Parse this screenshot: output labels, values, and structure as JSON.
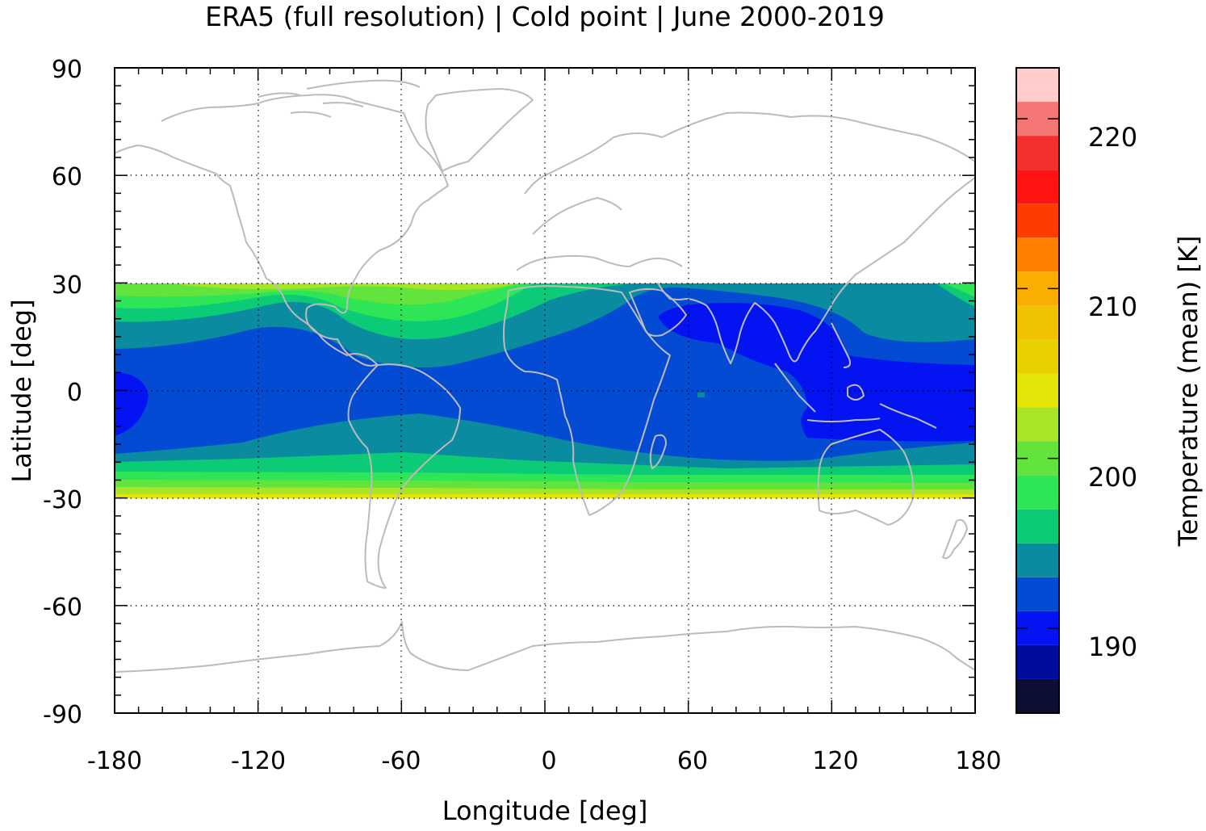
{
  "title": "ERA5 (full resolution) | Cold point | June 2000-2019",
  "chart_data": {
    "type": "heatmap",
    "title": "ERA5 (full resolution) | Cold point | June 2000-2019",
    "xlabel": "Longitude [deg]",
    "ylabel": "Latitude [deg]",
    "xlim": [
      -180,
      180
    ],
    "ylim": [
      -90,
      90
    ],
    "x_ticks": [
      "-180",
      "-120",
      "-60",
      "0",
      "60",
      "120",
      "180"
    ],
    "y_ticks": [
      "90",
      "60",
      "30",
      "0",
      "-30",
      "-60",
      "-90"
    ],
    "grid": true,
    "data_extent_lat": [
      -30,
      30
    ],
    "colorbar": {
      "label": "Temperature (mean) [K]",
      "range": [
        185,
        223
      ],
      "ticks": [
        "190",
        "200",
        "210",
        "220"
      ],
      "levels": [
        185,
        187,
        189,
        191,
        193,
        195,
        197,
        199,
        201,
        203,
        205,
        207,
        209,
        211,
        213,
        215,
        217,
        219,
        221,
        223
      ],
      "colors": [
        "#0c0f33",
        "#000d9c",
        "#0413f2",
        "#034bd2",
        "#0b8b9f",
        "#0ccb76",
        "#2ee457",
        "#63e43c",
        "#a7e526",
        "#e5e407",
        "#e9d100",
        "#f0c200",
        "#f9ae00",
        "#ff7f00",
        "#ff3c00",
        "#ff1313",
        "#f23030",
        "#f47674",
        "#ffcbcb"
      ]
    },
    "bands": [
      {
        "temperature_K": 190,
        "approx_region": "Western Pacific / Maritime Continent and Bay of Bengal / South Asian monsoon"
      },
      {
        "temperature_K": 192,
        "approx_region": "tropical belt ~15S to ~15N"
      },
      {
        "temperature_K": 194,
        "approx_region": "~15 to 20 deg N and S"
      },
      {
        "temperature_K": 196,
        "approx_region": "~20 deg"
      },
      {
        "temperature_K": 198,
        "approx_region": "~22 deg"
      },
      {
        "temperature_K": 200,
        "approx_region": "~25 deg"
      },
      {
        "temperature_K": 202,
        "approx_region": "~27 deg"
      },
      {
        "temperature_K": 204,
        "approx_region": "~29 deg"
      },
      {
        "temperature_K": 206,
        "approx_region": "30 deg edges"
      }
    ]
  },
  "colors": {
    "coast": "#bbbbbb",
    "axis": "#000000",
    "grid": "#000000"
  }
}
